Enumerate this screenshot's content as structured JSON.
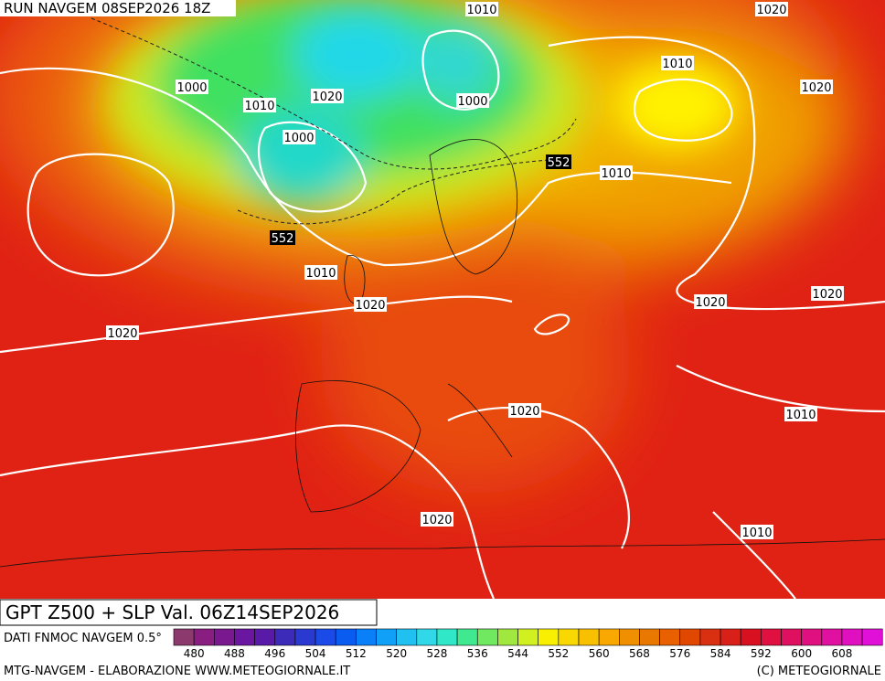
{
  "header": {
    "run": "RUN NAVGEM 08SEP2026 18Z"
  },
  "map": {
    "isobar_labels": [
      "1010",
      "1020",
      "1000",
      "1010",
      "1020",
      "1020",
      "1010",
      "1000",
      "1000",
      "552",
      "1010",
      "552",
      "1010",
      "1020",
      "1020",
      "1020",
      "1020",
      "1020",
      "1010",
      "1020",
      "1010"
    ]
  },
  "footer": {
    "title": "GPT Z500 + SLP Val. 06Z14SEP2026",
    "source": "DATI FNMOC NAVGEM 0.5°",
    "colorbar_labels": [
      480,
      488,
      496,
      504,
      512,
      520,
      528,
      536,
      544,
      552,
      560,
      568,
      576,
      584,
      592,
      600,
      608
    ],
    "credit_left": "MTG-NAVGEM - ELABORAZIONE WWW.METEOGIORNALE.IT",
    "credit_right": "(C) METEOGIORNALE"
  }
}
